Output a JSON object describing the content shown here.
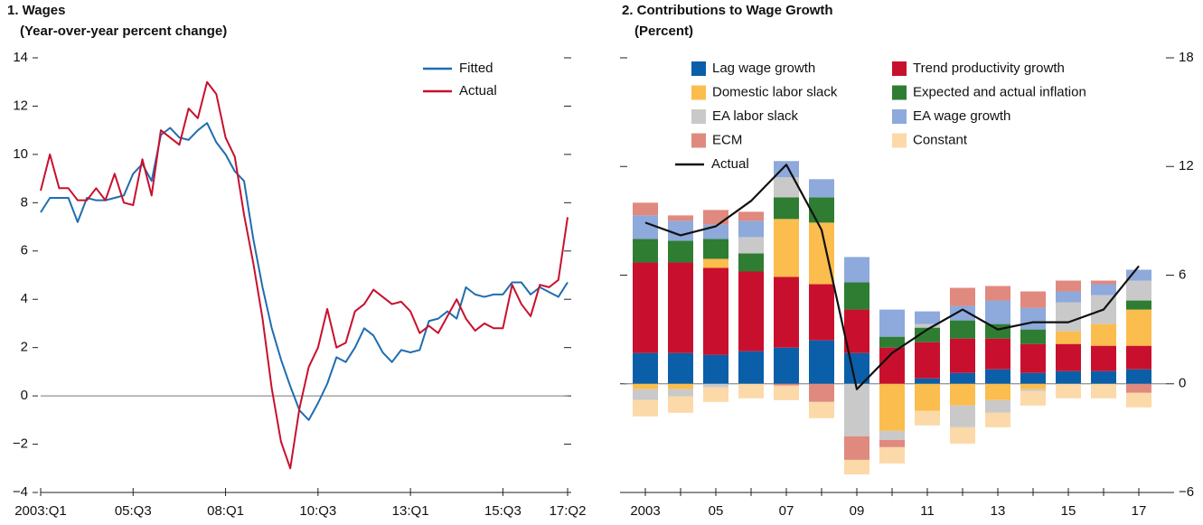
{
  "chart_data": [
    {
      "type": "line",
      "title": "1. Wages",
      "subtitle": "(Year-over-year percent change)",
      "categories": [
        "2003:Q1",
        null,
        null,
        null,
        null,
        null,
        null,
        null,
        null,
        null,
        "05:Q3",
        null,
        null,
        null,
        null,
        null,
        null,
        null,
        null,
        null,
        "08:Q1",
        null,
        null,
        null,
        null,
        null,
        null,
        null,
        null,
        null,
        "10:Q3",
        null,
        null,
        null,
        null,
        null,
        null,
        null,
        null,
        null,
        "13:Q1",
        null,
        null,
        null,
        null,
        null,
        null,
        null,
        null,
        null,
        "15:Q3",
        null,
        null,
        null,
        null,
        null,
        null,
        "17:Q2"
      ],
      "series": [
        {
          "name": "Fitted",
          "color": "#1f6db0",
          "values": [
            7.6,
            8.2,
            8.2,
            8.2,
            7.2,
            8.2,
            8.1,
            8.1,
            8.2,
            8.3,
            9.2,
            9.6,
            8.9,
            10.8,
            11.1,
            10.7,
            10.6,
            11.0,
            11.3,
            10.5,
            10.0,
            9.3,
            8.9,
            6.5,
            4.5,
            2.8,
            1.5,
            0.4,
            -0.6,
            -1.0,
            -0.3,
            0.5,
            1.6,
            1.4,
            2.0,
            2.8,
            2.5,
            1.8,
            1.4,
            1.9,
            1.8,
            1.9,
            3.1,
            3.2,
            3.5,
            3.2,
            4.5,
            4.2,
            4.1,
            4.2,
            4.2,
            4.7,
            4.7,
            4.2,
            4.5,
            4.3,
            4.1,
            4.7
          ]
        },
        {
          "name": "Actual",
          "color": "#c8102e",
          "values": [
            8.5,
            10.0,
            8.6,
            8.6,
            8.1,
            8.1,
            8.6,
            8.1,
            9.2,
            8.0,
            7.9,
            9.8,
            8.3,
            11.0,
            10.7,
            10.4,
            11.9,
            11.5,
            13.0,
            12.5,
            10.7,
            9.9,
            7.5,
            5.5,
            3.2,
            0.3,
            -1.9,
            -3.0,
            -0.5,
            1.2,
            2.0,
            3.6,
            2.0,
            2.2,
            3.5,
            3.8,
            4.4,
            4.1,
            3.8,
            3.9,
            3.5,
            2.6,
            2.9,
            2.6,
            3.3,
            4.0,
            3.2,
            2.7,
            3.0,
            2.8,
            2.8,
            4.6,
            3.8,
            3.3,
            4.6,
            4.5,
            4.8,
            7.4
          ]
        }
      ],
      "ylim": [
        -4,
        14
      ],
      "yticks": [
        {
          "value": -4,
          "label": "−4"
        },
        {
          "value": -2,
          "label": "−2"
        },
        0,
        2,
        4,
        6,
        8,
        10,
        12,
        14
      ],
      "legend": "upper right"
    },
    {
      "type": "bar",
      "stacked": true,
      "title": "2. Contributions to Wage Growth",
      "subtitle": "(Percent)",
      "categories": [
        "2003",
        null,
        "05",
        null,
        "07",
        null,
        "09",
        null,
        "11",
        null,
        "13",
        null,
        "15",
        null,
        "17"
      ],
      "series": [
        {
          "name": "Lag wage growth",
          "color": "#0a5fa8",
          "values": [
            1.7,
            1.7,
            1.6,
            1.8,
            2.0,
            2.4,
            1.7,
            0,
            0.3,
            0.6,
            0.8,
            0.6,
            0.7,
            0.7,
            0.8
          ]
        },
        {
          "name": "Trend productivity growth",
          "color": "#c8102e",
          "values": [
            5.0,
            5.0,
            4.8,
            4.4,
            3.9,
            3.1,
            2.4,
            2.0,
            2.0,
            1.9,
            1.7,
            1.6,
            1.5,
            1.4,
            1.3
          ]
        },
        {
          "name": "Domestic labor slack",
          "color": "#fbbd4e",
          "values": [
            -0.3,
            -0.3,
            0.5,
            0,
            3.2,
            3.4,
            0,
            -2.6,
            -1.5,
            -1.2,
            -0.9,
            -0.3,
            0.7,
            1.2,
            2.0
          ]
        },
        {
          "name": "Expected and actual inflation",
          "color": "#2f7d32",
          "values": [
            1.3,
            1.2,
            1.1,
            1.0,
            1.2,
            1.4,
            1.5,
            0.6,
            0.8,
            1.0,
            0.8,
            0.8,
            0,
            0,
            0.5
          ]
        },
        {
          "name": "EA labor slack",
          "color": "#c9c9c9",
          "values": [
            -0.6,
            -0.4,
            -0.2,
            0.9,
            1.1,
            0,
            -2.9,
            -0.5,
            0.2,
            -1.2,
            -0.7,
            -0.1,
            1.6,
            1.6,
            1.1
          ]
        },
        {
          "name": "EA wage growth",
          "color": "#8ea9db",
          "values": [
            1.3,
            1.1,
            0.8,
            0.9,
            0.9,
            1.0,
            1.4,
            1.5,
            0.7,
            0.8,
            1.3,
            1.2,
            0.6,
            0.6,
            0.6
          ]
        },
        {
          "name": "ECM",
          "color": "#e0897f",
          "values": [
            0.7,
            0.3,
            0.8,
            0.5,
            -0.1,
            -1.0,
            -1.3,
            -0.4,
            0,
            1.0,
            0.8,
            0.9,
            0.6,
            0.2,
            -0.5
          ]
        },
        {
          "name": "Constant",
          "color": "#fcd9a8",
          "values": [
            -0.9,
            -0.9,
            -0.8,
            -0.8,
            -0.8,
            -0.9,
            -0.8,
            -0.9,
            -0.8,
            -0.9,
            -0.8,
            -0.8,
            -0.8,
            -0.8,
            -0.8
          ]
        },
        {
          "name": "Actual",
          "type": "line",
          "color": "#111111",
          "values": [
            8.9,
            8.2,
            8.7,
            10.1,
            12.1,
            8.5,
            -0.3,
            1.7,
            3.0,
            4.1,
            3.0,
            3.4,
            3.4,
            4.1,
            6.5
          ]
        }
      ],
      "ylim": [
        -6,
        18
      ],
      "yticks": [
        {
          "value": -6,
          "label": "−6"
        },
        0,
        6,
        12,
        18
      ],
      "y_axis_side": "right",
      "legend": "upper center"
    }
  ]
}
